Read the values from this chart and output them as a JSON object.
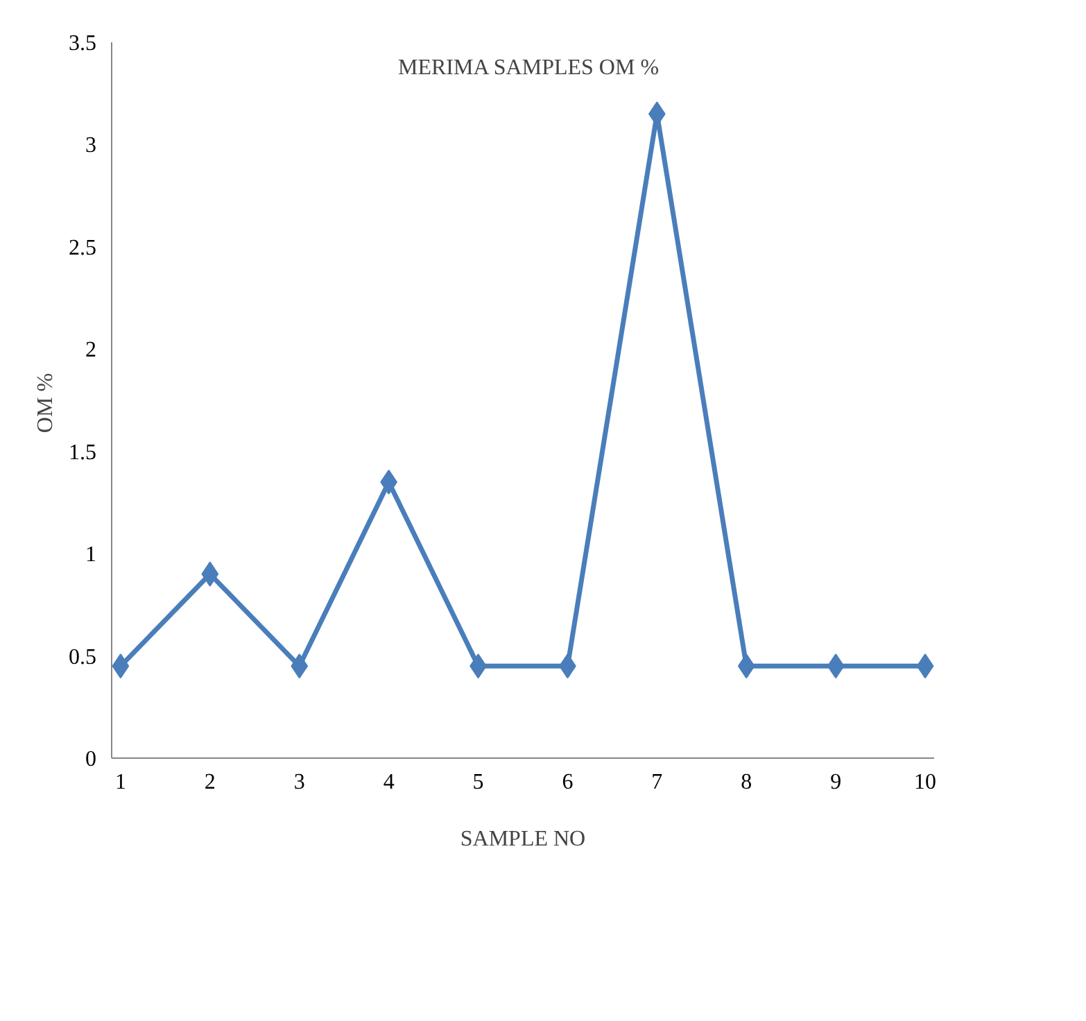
{
  "chart_data": {
    "type": "line",
    "title": "MERIMA  SAMPLES OM %",
    "xlabel": "SAMPLE NO",
    "ylabel": "OM  %",
    "categories": [
      "1",
      "2",
      "3",
      "4",
      "5",
      "6",
      "7",
      "8",
      "9",
      "10"
    ],
    "series": [
      {
        "color": "#4a7ebb",
        "values": [
          0.45,
          0.9,
          0.45,
          1.35,
          0.45,
          0.45,
          3.15,
          0.45,
          0.45,
          0.45
        ]
      }
    ],
    "ylim": [
      0,
      3.5
    ],
    "yticks": [
      0,
      0.5,
      1,
      1.5,
      2,
      2.5,
      3,
      3.5
    ],
    "grid": false,
    "marker": "diamond",
    "line_style": "solid"
  }
}
